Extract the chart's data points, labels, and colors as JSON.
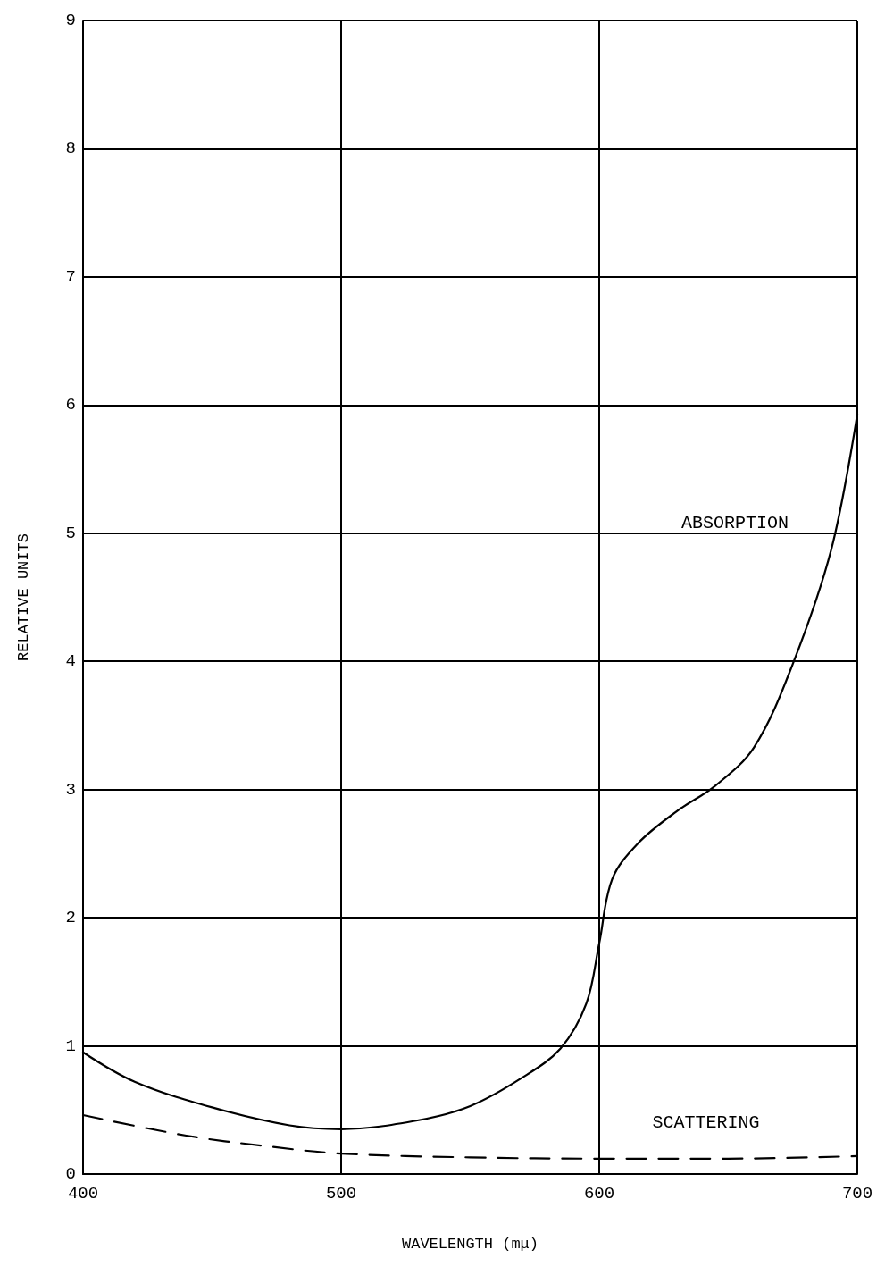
{
  "chart_data": {
    "type": "line",
    "xlabel": "WAVELENGTH (mμ)",
    "ylabel": "RELATIVE UNITS",
    "xlim": [
      400,
      700
    ],
    "xticks": [
      400,
      500,
      600,
      700
    ],
    "ylim": [
      0,
      9
    ],
    "yticks": [
      0,
      1,
      2,
      3,
      4,
      5,
      6,
      7,
      8,
      9
    ],
    "grid": true,
    "marker": "none",
    "series": [
      {
        "name": "ABSORPTION",
        "color": "#000000",
        "line_style": "solid",
        "x": [
          400,
          420,
          450,
          480,
          500,
          530,
          550,
          570,
          585,
          595,
          600,
          605,
          615,
          630,
          645,
          660,
          675,
          690,
          700
        ],
        "values": [
          0.95,
          0.72,
          0.52,
          0.38,
          0.35,
          0.42,
          0.53,
          0.75,
          0.98,
          1.33,
          1.8,
          2.3,
          2.58,
          2.83,
          3.03,
          3.33,
          3.98,
          4.88,
          5.93
        ]
      },
      {
        "name": "SCATTERING",
        "color": "#000000",
        "line_style": "dashed",
        "x": [
          400,
          440,
          470,
          500,
          550,
          600,
          650,
          700
        ],
        "values": [
          0.46,
          0.3,
          0.22,
          0.16,
          0.13,
          0.12,
          0.12,
          0.14
        ]
      }
    ]
  }
}
